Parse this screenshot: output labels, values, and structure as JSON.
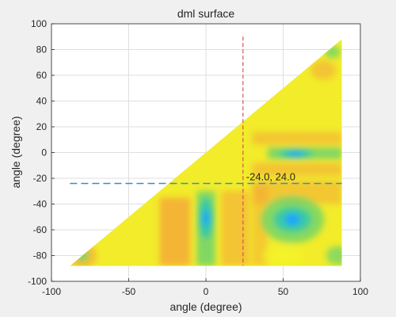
{
  "chart_data": {
    "type": "heatmap",
    "title": "dml surface",
    "xlabel": "angle (degree)",
    "ylabel": "angle (degree)",
    "xlim": [
      -100,
      100
    ],
    "ylim": [
      -100,
      100
    ],
    "xticks": [
      -100,
      -50,
      0,
      50,
      100
    ],
    "yticks": [
      -100,
      -80,
      -60,
      -40,
      -20,
      0,
      20,
      40,
      60,
      80,
      100
    ],
    "grid": true,
    "domain": {
      "shape": "triangle",
      "vertices": [
        [
          -88,
          -88
        ],
        [
          88,
          88
        ],
        [
          88,
          -88
        ]
      ]
    },
    "low_regions": [
      {
        "center": [
          0,
          -51
        ],
        "depth": "deep minimum"
      },
      {
        "center": [
          56,
          -52
        ],
        "depth": "minimum"
      },
      {
        "center": [
          58,
          -1
        ],
        "depth": "minimum"
      }
    ],
    "colormap": [
      "#1fa3ff",
      "#2ec8ae",
      "#6cd46c",
      "#f5f525",
      "#f7c23a",
      "#f4a238"
    ],
    "crosshair": {
      "x": 24.0,
      "y": -24.0,
      "label": "-24.0, 24.0",
      "vertical_color": "#d9534f",
      "horizontal_color": "#2f8fd6"
    }
  }
}
